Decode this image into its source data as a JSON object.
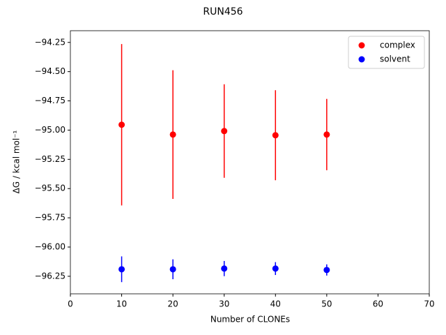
{
  "chart_data": {
    "type": "errorbar-scatter",
    "title": "RUN456",
    "xlabel": "Number of CLONEs",
    "ylabel": "ΔG / kcal mol⁻¹",
    "x": [
      10,
      20,
      30,
      40,
      50
    ],
    "series": [
      {
        "name": "complex",
        "color": "#ff0000",
        "values": [
          -94.954,
          -95.038,
          -95.008,
          -95.044,
          -95.038
        ],
        "errors": [
          0.69,
          0.55,
          0.4,
          0.385,
          0.305
        ]
      },
      {
        "name": "solvent",
        "color": "#0000ff",
        "values": [
          -96.19,
          -96.19,
          -96.184,
          -96.184,
          -96.196
        ],
        "errors": [
          0.11,
          0.085,
          0.065,
          0.055,
          0.048
        ]
      }
    ],
    "xlim": [
      0,
      70
    ],
    "xticks": [
      0,
      10,
      20,
      30,
      40,
      50,
      60,
      70
    ],
    "ylim": [
      -96.4,
      -94.15
    ],
    "yticks": [
      {
        "value": -94.25,
        "label": "−94.25"
      },
      {
        "value": -94.5,
        "label": "−94.50"
      },
      {
        "value": -94.75,
        "label": "−94.75"
      },
      {
        "value": -95.0,
        "label": "−95.00"
      },
      {
        "value": -95.25,
        "label": "−95.25"
      },
      {
        "value": -95.5,
        "label": "−95.50"
      },
      {
        "value": -95.75,
        "label": "−95.75"
      },
      {
        "value": -96.0,
        "label": "−96.00"
      },
      {
        "value": -96.25,
        "label": "−96.25"
      }
    ],
    "legend": "upper right",
    "grid": false
  }
}
